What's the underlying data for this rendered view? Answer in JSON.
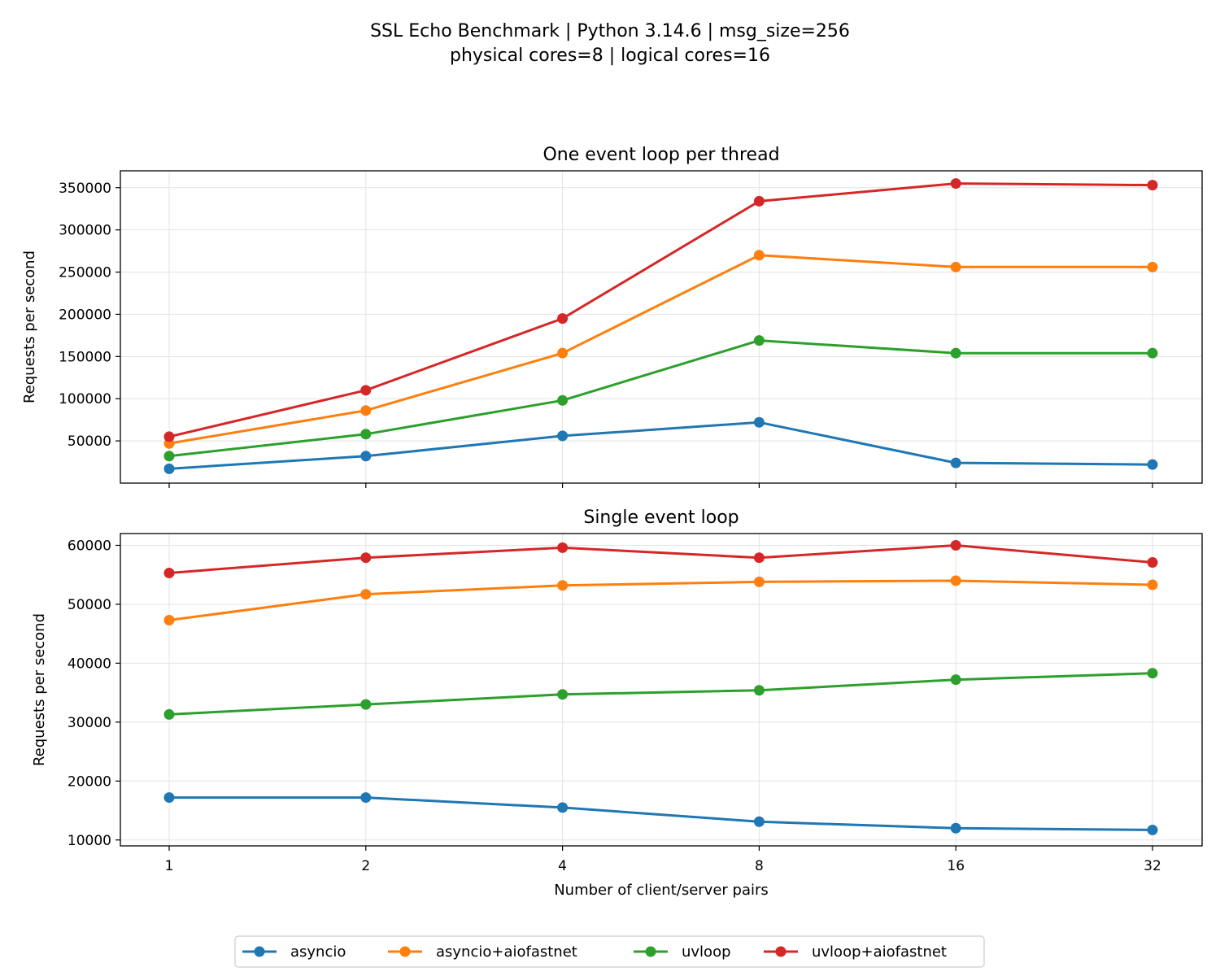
{
  "figure": {
    "title_line1": "SSL Echo Benchmark | Python 3.14.6 | msg_size=256",
    "title_line2": "physical cores=8 | logical cores=16"
  },
  "chart_data": [
    {
      "type": "line",
      "title": "One event loop per thread",
      "xlabel": "",
      "ylabel": "Requests per second",
      "x": [
        1,
        2,
        4,
        8,
        16,
        32
      ],
      "x_scale": "log2",
      "ylim": [
        0,
        370000
      ],
      "yticks": [
        50000,
        100000,
        150000,
        200000,
        250000,
        300000,
        350000
      ],
      "grid": true,
      "series": [
        {
          "name": "asyncio",
          "values": [
            17000,
            32000,
            56000,
            72000,
            24000,
            22000
          ]
        },
        {
          "name": "asyncio+aiofastnet",
          "values": [
            47000,
            86000,
            154000,
            270000,
            256000,
            256000
          ]
        },
        {
          "name": "uvloop",
          "values": [
            32000,
            58000,
            98000,
            169000,
            154000,
            154000
          ]
        },
        {
          "name": "uvloop+aiofastnet",
          "values": [
            55000,
            110000,
            195000,
            334000,
            355000,
            353000
          ]
        }
      ]
    },
    {
      "type": "line",
      "title": "Single event loop",
      "xlabel": "Number of client/server pairs",
      "ylabel": "Requests per second",
      "x": [
        1,
        2,
        4,
        8,
        16,
        32
      ],
      "x_scale": "log2",
      "ylim": [
        9000,
        62000
      ],
      "yticks": [
        10000,
        20000,
        30000,
        40000,
        50000,
        60000
      ],
      "grid": true,
      "series": [
        {
          "name": "asyncio",
          "values": [
            17200,
            17200,
            15500,
            13100,
            12000,
            11700
          ]
        },
        {
          "name": "asyncio+aiofastnet",
          "values": [
            47300,
            51700,
            53200,
            53800,
            54000,
            53300
          ]
        },
        {
          "name": "uvloop",
          "values": [
            31300,
            33000,
            34700,
            35400,
            37200,
            38300
          ]
        },
        {
          "name": "uvloop+aiofastnet",
          "values": [
            55300,
            57900,
            59600,
            57900,
            60000,
            57100
          ]
        }
      ]
    }
  ],
  "legend": {
    "placement": "bottom-center",
    "entries": [
      {
        "label": "asyncio",
        "color": "#1f77b4"
      },
      {
        "label": "asyncio+aiofastnet",
        "color": "#ff7f0e"
      },
      {
        "label": "uvloop",
        "color": "#2ca02c"
      },
      {
        "label": "uvloop+aiofastnet",
        "color": "#d62728"
      }
    ]
  },
  "series_colors": [
    "#1f77b4",
    "#ff7f0e",
    "#2ca02c",
    "#d62728"
  ]
}
